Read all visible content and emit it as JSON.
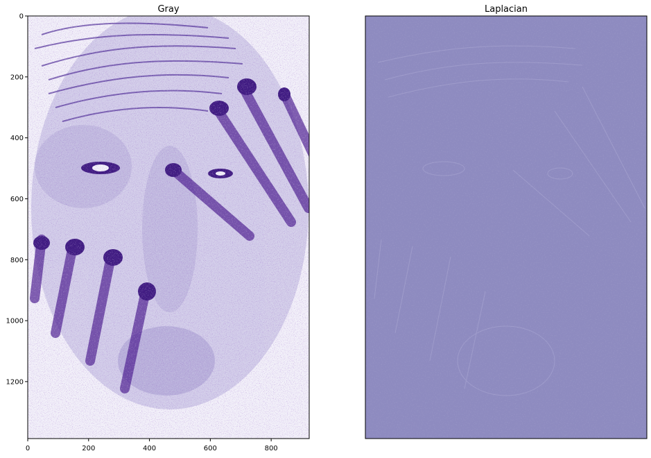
{
  "chart_data": [
    {
      "type": "image",
      "title": "Gray",
      "colormap": "Purples",
      "xlim": [
        0,
        925
      ],
      "ylim": [
        1387,
        0
      ],
      "x_ticks": [
        0,
        200,
        400,
        600,
        800
      ],
      "y_ticks": [
        0,
        200,
        400,
        600,
        800,
        1000,
        1200
      ],
      "x_tick_labels": [
        "0",
        "200",
        "400",
        "600",
        "800"
      ],
      "y_tick_labels": [
        "0",
        "200",
        "400",
        "600",
        "800",
        "1000",
        "1200"
      ],
      "axes_visible": true
    },
    {
      "type": "image",
      "title": "Laplacian",
      "colormap": "Purples",
      "fill_color": "#8e8bc0",
      "axes_visible": false
    }
  ],
  "colors": {
    "purple_dark": "#4b1d8f",
    "purple_mid": "#7a6bb8",
    "purple_light": "#d8d5ec",
    "laplacian_bg": "#8e8bc0"
  }
}
